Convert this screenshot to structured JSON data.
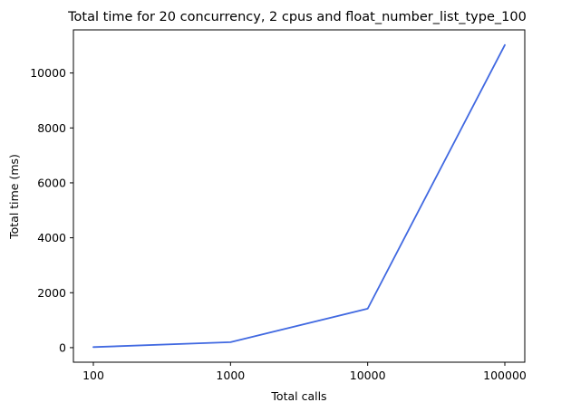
{
  "chart_data": {
    "type": "line",
    "title": "Total time for 20 concurrency, 2 cpus and float_number_list_type_100",
    "xlabel": "Total calls",
    "ylabel": "Total time (ms)",
    "categories": [
      "100",
      "1000",
      "10000",
      "100000"
    ],
    "series": [
      {
        "values": [
          20,
          200,
          1420,
          11020
        ],
        "color": "#4169e1"
      }
    ],
    "y_ticks": [
      0,
      2000,
      4000,
      6000,
      8000,
      10000
    ],
    "ylim": [
      -530,
      11570
    ],
    "grid": false,
    "legend": "none"
  }
}
